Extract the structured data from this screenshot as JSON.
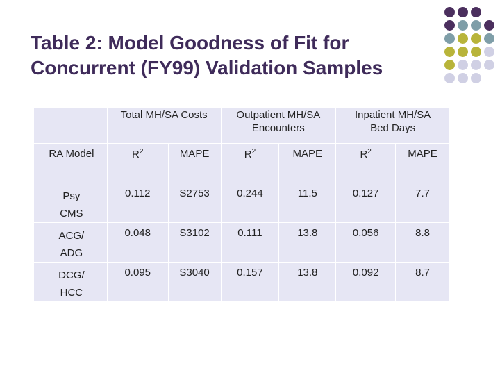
{
  "slide": {
    "title_line1": "Table 2: Model Goodness of Fit for",
    "title_line2": "Concurrent (FY99) Validation Samples"
  },
  "decoration": {
    "colors": {
      "purple": "#4b2f5e",
      "teal": "#7f9ea8",
      "olive": "#b8b43a",
      "lavender": "#d0d0e4"
    }
  },
  "table": {
    "groups": [
      {
        "line1": "Total MH/SA Costs",
        "line2": ""
      },
      {
        "line1": "Outpatient MH/SA",
        "line2": "Encounters"
      },
      {
        "line1": "Inpatient MH/SA",
        "line2": "Bed Days"
      }
    ],
    "model_header": "RA Model",
    "r2_label": "R",
    "r2_sup": "2",
    "mape_label": "MAPE",
    "rows": [
      {
        "model_line1": "Psy",
        "model_line2": "CMS",
        "cost_r2": "0.112",
        "cost_mape": "S2753",
        "op_r2": "0.244",
        "op_mape": "11.5",
        "ip_r2": "0.127",
        "ip_mape": "7.7"
      },
      {
        "model_line1": "ACG/",
        "model_line2": "ADG",
        "cost_r2": "0.048",
        "cost_mape": "S3102",
        "op_r2": "0.111",
        "op_mape": "13.8",
        "ip_r2": "0.056",
        "ip_mape": "8.8"
      },
      {
        "model_line1": "DCG/",
        "model_line2": "HCC",
        "cost_r2": "0.095",
        "cost_mape": "S3040",
        "op_r2": "0.157",
        "op_mape": "13.8",
        "ip_r2": "0.092",
        "ip_mape": "8.7"
      }
    ]
  }
}
